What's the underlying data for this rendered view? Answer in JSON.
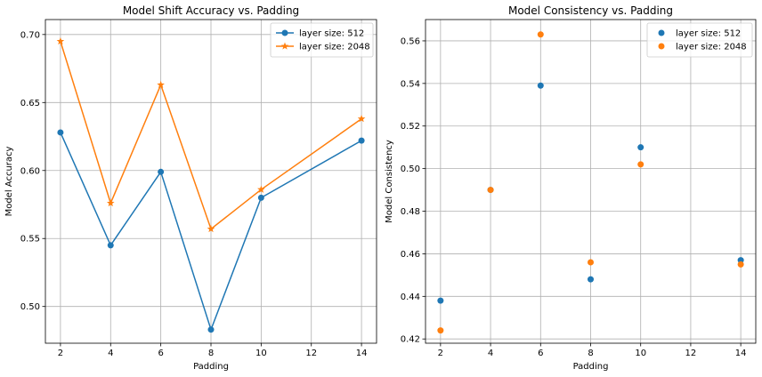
{
  "chart_data": [
    {
      "type": "line",
      "title": "Model Shift Accuracy vs. Padding",
      "xlabel": "Padding",
      "ylabel": "Model Accuracy",
      "x": [
        2,
        4,
        6,
        8,
        10,
        14
      ],
      "xlim": [
        1.4,
        14.6
      ],
      "ylim": [
        0.473,
        0.711
      ],
      "xticks": [
        2,
        4,
        6,
        8,
        10,
        12,
        14
      ],
      "yticks": [
        0.5,
        0.55,
        0.6,
        0.65,
        0.7
      ],
      "xtick_labels": [
        "2",
        "4",
        "6",
        "8",
        "10",
        "12",
        "14"
      ],
      "ytick_labels": [
        "0.50",
        "0.55",
        "0.60",
        "0.65",
        "0.70"
      ],
      "grid": true,
      "legend_position": "top-right",
      "series": [
        {
          "name": "layer size: 512",
          "values": [
            0.628,
            0.545,
            0.599,
            0.483,
            0.58,
            0.622
          ],
          "color": "#1f77b4",
          "marker": "circle",
          "line": true
        },
        {
          "name": "layer size: 2048",
          "values": [
            0.695,
            0.576,
            0.663,
            0.557,
            0.586,
            0.638
          ],
          "color": "#ff7f0e",
          "marker": "star",
          "line": true
        }
      ]
    },
    {
      "type": "scatter",
      "title": "Model Consistency vs. Padding",
      "xlabel": "Padding",
      "ylabel": "Model Consistency",
      "x": [
        2,
        4,
        6,
        8,
        10,
        14
      ],
      "xlim": [
        1.4,
        14.6
      ],
      "ylim": [
        0.418,
        0.57
      ],
      "xticks": [
        2,
        4,
        6,
        8,
        10,
        12,
        14
      ],
      "yticks": [
        0.42,
        0.44,
        0.46,
        0.48,
        0.5,
        0.52,
        0.54,
        0.56
      ],
      "xtick_labels": [
        "2",
        "4",
        "6",
        "8",
        "10",
        "12",
        "14"
      ],
      "ytick_labels": [
        "0.42",
        "0.44",
        "0.46",
        "0.48",
        "0.50",
        "0.52",
        "0.54",
        "0.56"
      ],
      "grid": true,
      "legend_position": "top-right",
      "series": [
        {
          "name": "layer size: 512",
          "values": [
            0.438,
            0.49,
            0.539,
            0.448,
            0.51,
            0.457
          ],
          "color": "#1f77b4",
          "marker": "circle",
          "line": false
        },
        {
          "name": "layer size: 2048",
          "values": [
            0.424,
            0.49,
            0.563,
            0.456,
            0.502,
            0.455
          ],
          "color": "#ff7f0e",
          "marker": "circle",
          "line": false
        }
      ]
    }
  ]
}
